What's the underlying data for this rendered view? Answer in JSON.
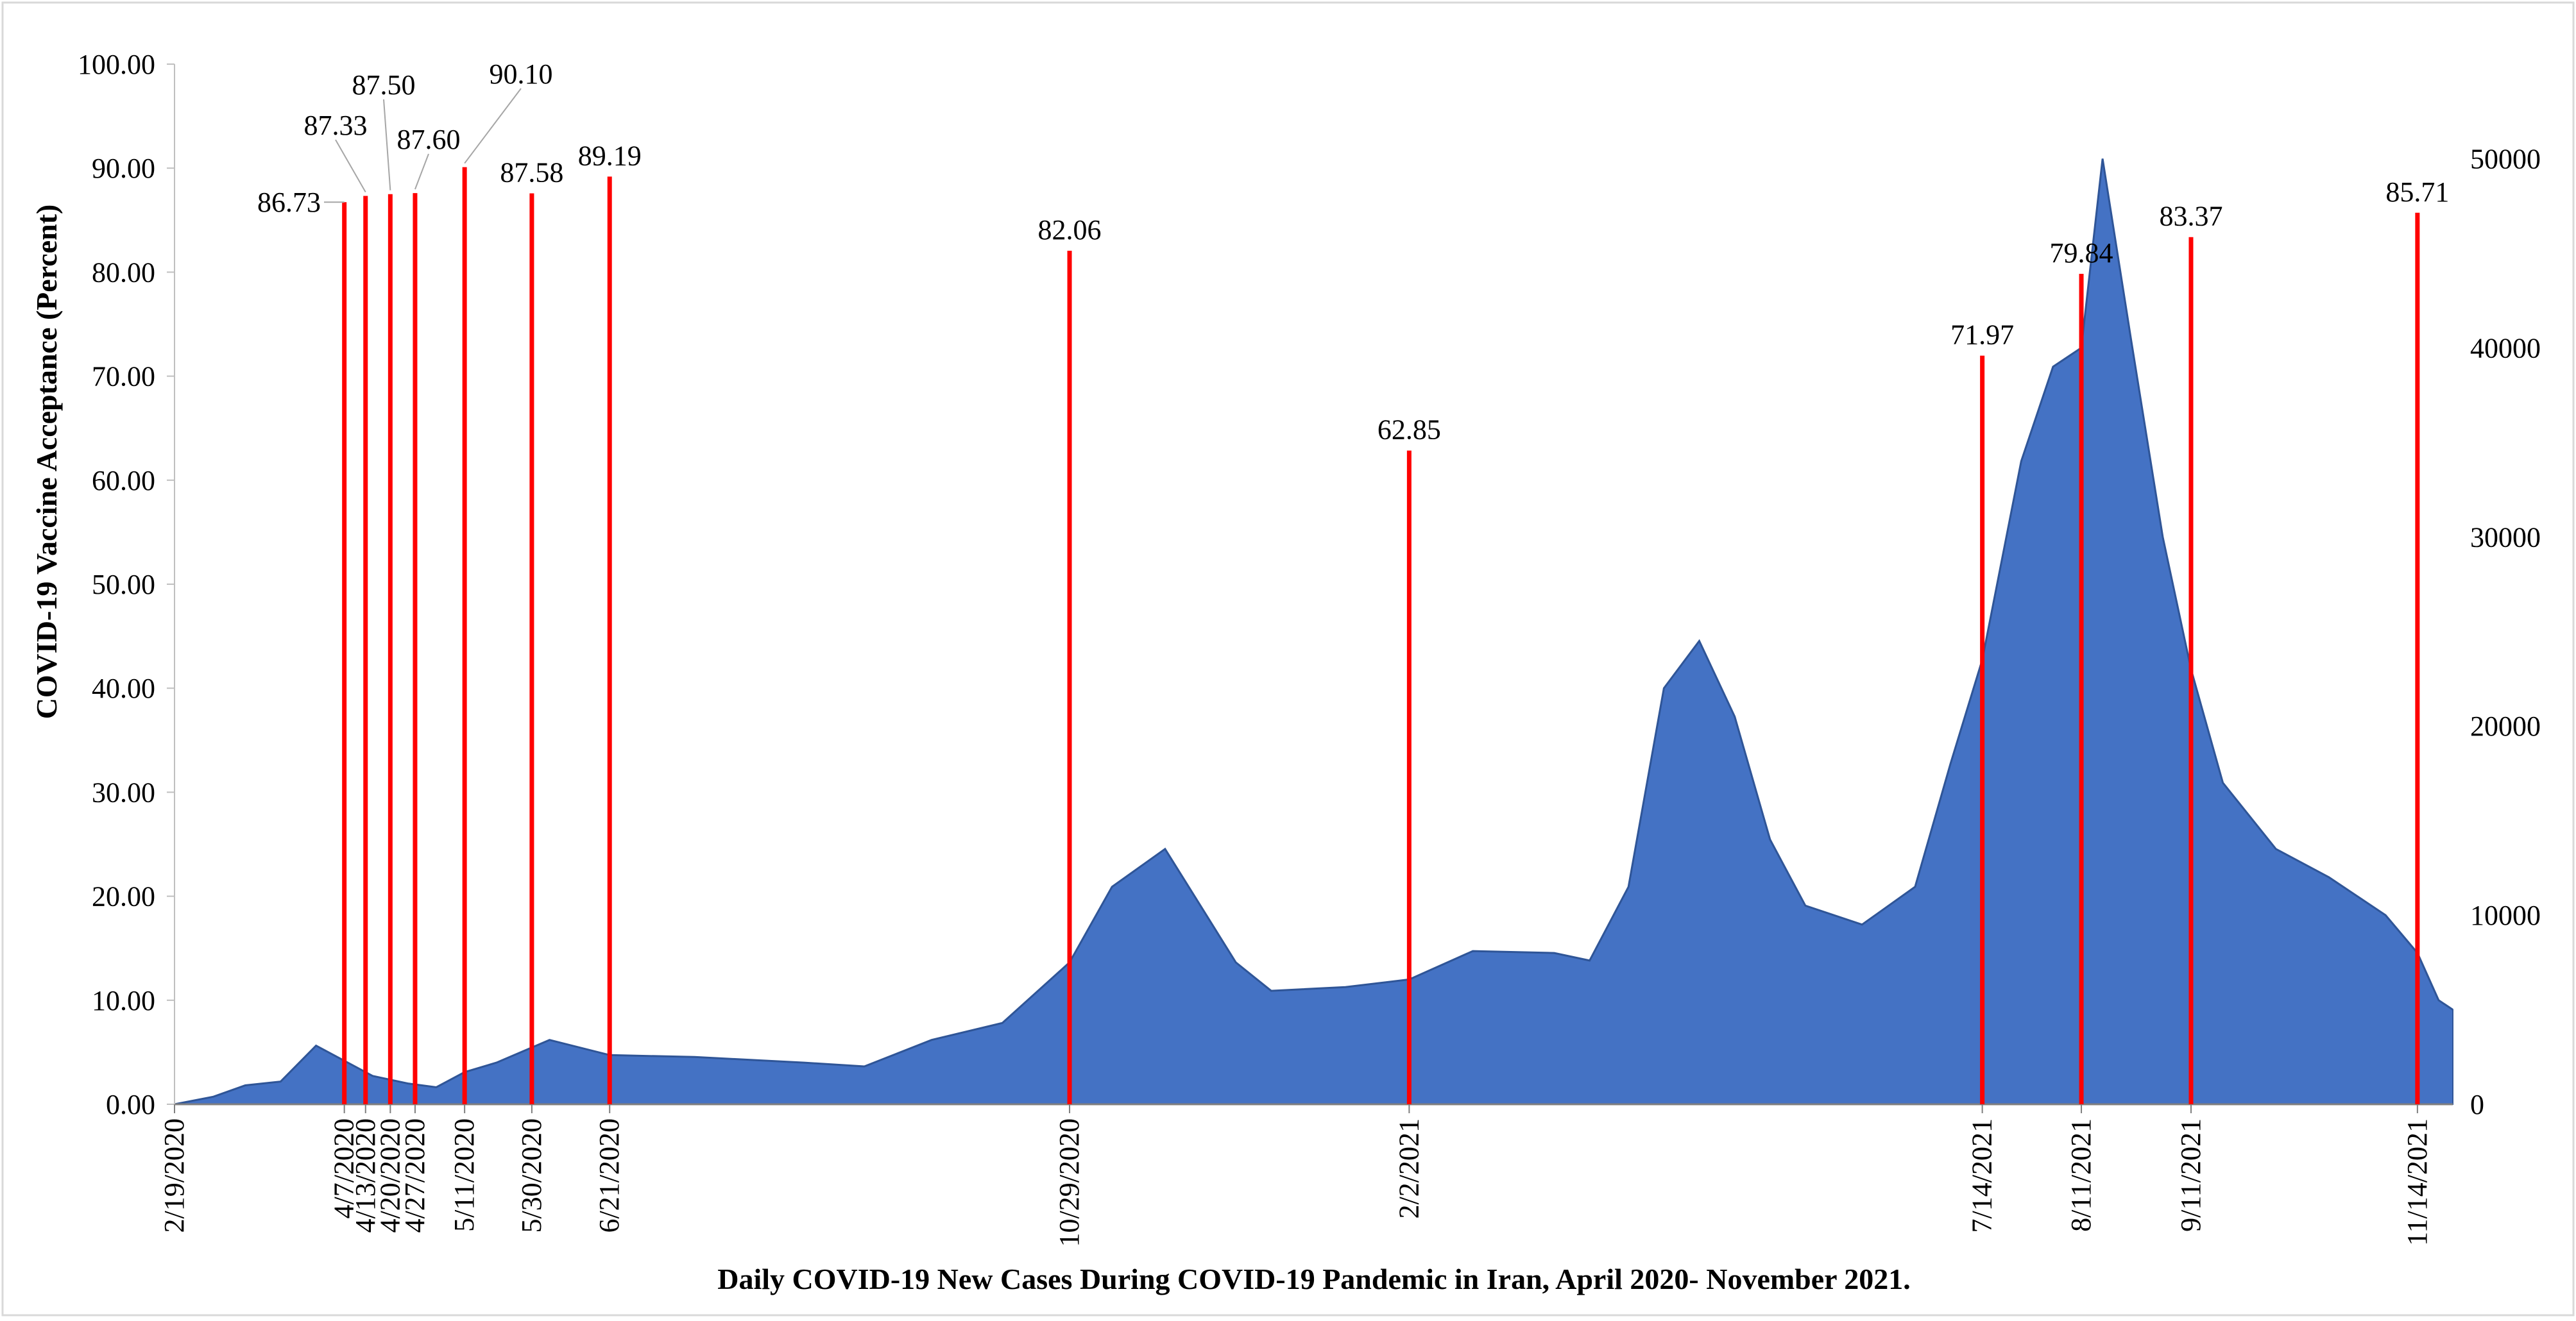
{
  "chart_data": {
    "type": "bar",
    "title": "",
    "xlabel": "Daily COVID-19 New Cases During COVID-19 Pandemic in Iran, April 2020- November 2021.",
    "ylabel": "COVID-19 Vaccine Acceptance (Percent)",
    "ylim": [
      0,
      100
    ],
    "y_ticks": [
      "0.00",
      "10.00",
      "20.00",
      "30.00",
      "40.00",
      "50.00",
      "60.00",
      "70.00",
      "80.00",
      "90.00",
      "100.00"
    ],
    "y2lim": [
      0,
      55000
    ],
    "y2_ticks": [
      "0",
      "10000",
      "20000",
      "30000",
      "40000",
      "50000"
    ],
    "x_range": [
      "2/19/2020",
      "11/24/2021"
    ],
    "x_tick_labels": [
      "2/19/2020",
      "4/7/2020",
      "4/13/2020",
      "4/20/2020",
      "4/27/2020",
      "5/11/2020",
      "5/30/2020",
      "6/21/2020",
      "10/29/2020",
      "2/2/2021",
      "7/14/2021",
      "8/11/2021",
      "9/11/2021",
      "11/14/2021"
    ],
    "colors": {
      "cases": "#4472C4",
      "acceptance": "#FF0000"
    },
    "series": [
      {
        "name": "",
        "axis": "left",
        "style": "red vertical bars",
        "points": [
          {
            "x": "4/7/2020",
            "y": 86.73,
            "label": "86.73"
          },
          {
            "x": "4/13/2020",
            "y": 87.33,
            "label": "87.33"
          },
          {
            "x": "4/20/2020",
            "y": 87.5,
            "label": "87.50"
          },
          {
            "x": "4/27/2020",
            "y": 87.6,
            "label": "87.60"
          },
          {
            "x": "5/11/2020",
            "y": 90.1,
            "label": "90.10"
          },
          {
            "x": "5/30/2020",
            "y": 87.58,
            "label": "87.58"
          },
          {
            "x": "6/21/2020",
            "y": 89.19,
            "label": "89.19"
          },
          {
            "x": "10/29/2020",
            "y": 82.06,
            "label": "82.06"
          },
          {
            "x": "2/2/2021",
            "y": 62.85,
            "label": "62.85"
          },
          {
            "x": "7/14/2021",
            "y": 71.97,
            "label": "71.97"
          },
          {
            "x": "8/11/2021",
            "y": 79.84,
            "label": "79.84"
          },
          {
            "x": "9/11/2021",
            "y": 83.37,
            "label": "83.37"
          },
          {
            "x": "11/14/2021",
            "y": 85.71,
            "label": "85.71"
          }
        ]
      },
      {
        "name": "",
        "axis": "right",
        "style": "blue area of daily new cases (approximate)",
        "points": [
          {
            "x": "2/19/2020",
            "y": 0
          },
          {
            "x": "3/1/2020",
            "y": 400
          },
          {
            "x": "3/10/2020",
            "y": 1000
          },
          {
            "x": "3/20/2020",
            "y": 1200
          },
          {
            "x": "3/30/2020",
            "y": 3100
          },
          {
            "x": "4/7/2020",
            "y": 2300
          },
          {
            "x": "4/15/2020",
            "y": 1500
          },
          {
            "x": "4/25/2020",
            "y": 1100
          },
          {
            "x": "5/3/2020",
            "y": 900
          },
          {
            "x": "5/11/2020",
            "y": 1700
          },
          {
            "x": "5/20/2020",
            "y": 2200
          },
          {
            "x": "6/4/2020",
            "y": 3400
          },
          {
            "x": "6/21/2020",
            "y": 2600
          },
          {
            "x": "7/15/2020",
            "y": 2500
          },
          {
            "x": "8/15/2020",
            "y": 2200
          },
          {
            "x": "9/1/2020",
            "y": 2000
          },
          {
            "x": "9/20/2020",
            "y": 3400
          },
          {
            "x": "10/10/2020",
            "y": 4300
          },
          {
            "x": "10/29/2020",
            "y": 7500
          },
          {
            "x": "11/10/2020",
            "y": 11500
          },
          {
            "x": "11/25/2020",
            "y": 13500
          },
          {
            "x": "12/5/2020",
            "y": 10500
          },
          {
            "x": "12/15/2020",
            "y": 7500
          },
          {
            "x": "12/25/2020",
            "y": 6000
          },
          {
            "x": "1/15/2021",
            "y": 6200
          },
          {
            "x": "2/2/2021",
            "y": 6600
          },
          {
            "x": "2/20/2021",
            "y": 8100
          },
          {
            "x": "3/15/2021",
            "y": 8000
          },
          {
            "x": "3/25/2021",
            "y": 7600
          },
          {
            "x": "4/5/2021",
            "y": 11500
          },
          {
            "x": "4/15/2021",
            "y": 22000
          },
          {
            "x": "4/25/2021",
            "y": 24500
          },
          {
            "x": "5/5/2021",
            "y": 20500
          },
          {
            "x": "5/15/2021",
            "y": 14000
          },
          {
            "x": "5/25/2021",
            "y": 10500
          },
          {
            "x": "6/10/2021",
            "y": 9500
          },
          {
            "x": "6/25/2021",
            "y": 11500
          },
          {
            "x": "7/5/2021",
            "y": 18000
          },
          {
            "x": "7/14/2021",
            "y": 23500
          },
          {
            "x": "7/25/2021",
            "y": 34000
          },
          {
            "x": "8/3/2021",
            "y": 39000
          },
          {
            "x": "8/11/2021",
            "y": 40000
          },
          {
            "x": "8/17/2021",
            "y": 50000
          },
          {
            "x": "8/25/2021",
            "y": 40500
          },
          {
            "x": "9/3/2021",
            "y": 30000
          },
          {
            "x": "9/11/2021",
            "y": 23000
          },
          {
            "x": "9/20/2021",
            "y": 17000
          },
          {
            "x": "10/5/2021",
            "y": 13500
          },
          {
            "x": "10/20/2021",
            "y": 12000
          },
          {
            "x": "11/5/2021",
            "y": 10000
          },
          {
            "x": "11/14/2021",
            "y": 8000
          },
          {
            "x": "11/20/2021",
            "y": 5500
          },
          {
            "x": "11/24/2021",
            "y": 5000
          }
        ]
      }
    ]
  }
}
